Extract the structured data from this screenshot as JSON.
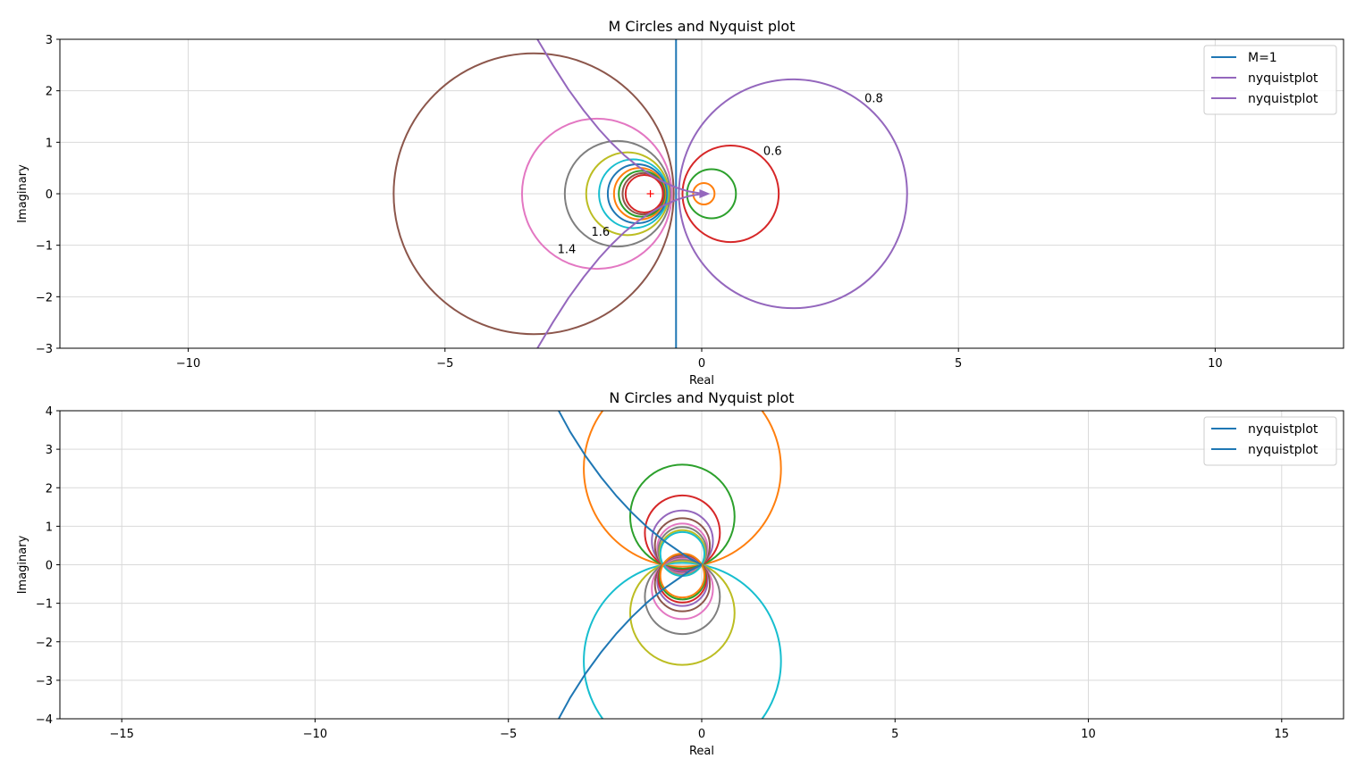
{
  "chart_data": [
    {
      "type": "line",
      "title": "M Circles and Nyquist plot",
      "xlabel": "Real",
      "ylabel": "Imaginary",
      "xlim": [
        -12.5,
        12.5
      ],
      "ylim": [
        -3,
        3
      ],
      "xticks": [
        -10,
        -5,
        0,
        5,
        10
      ],
      "xtick_labels": [
        "−10",
        "−5",
        "0",
        "5",
        "10"
      ],
      "yticks": [
        -3,
        -2,
        -1,
        0,
        1,
        2,
        3
      ],
      "ytick_labels": [
        "−3",
        "−2",
        "−1",
        "0",
        "1",
        "2",
        "3"
      ],
      "grid": true,
      "legend_position": "top-right",
      "legend": [
        {
          "label": "M=1",
          "color": "#1f77b4"
        },
        {
          "label": "nyquistplot",
          "color": "#9467bd"
        },
        {
          "label": "nyquistplot",
          "color": "#9467bd"
        }
      ],
      "m1_line": {
        "x": -0.5,
        "color": "#1f77b4"
      },
      "circles": [
        {
          "cx": 0.0417,
          "r": 0.2083,
          "color": "#ff7f0e"
        },
        {
          "cx": 0.1905,
          "r": 0.4762,
          "color": "#2ca02c"
        },
        {
          "cx": 0.5625,
          "r": 0.9375,
          "color": "#d62728"
        },
        {
          "cx": 1.7778,
          "r": 2.2222,
          "color": "#9467bd"
        },
        {
          "cx": -3.2727,
          "r": 2.7273,
          "color": "#8c564b"
        },
        {
          "cx": -2.0417,
          "r": 1.4583,
          "color": "#e377c2"
        },
        {
          "cx": -1.641,
          "r": 1.0256,
          "color": "#7f7f7f"
        },
        {
          "cx": -1.4464,
          "r": 0.8036,
          "color": "#bcbd22"
        },
        {
          "cx": -1.3333,
          "r": 0.6667,
          "color": "#17becf"
        },
        {
          "cx": -1.2581,
          "r": 0.5712,
          "color": "#1f77b4"
        },
        {
          "cx": -1.2083,
          "r": 0.5,
          "color": "#ff7f0e"
        },
        {
          "cx": -1.1704,
          "r": 0.4445,
          "color": "#2ca02c"
        },
        {
          "cx": -1.1414,
          "r": 0.4,
          "color": "#8c564b"
        },
        {
          "cx": -1.119,
          "r": 0.3637,
          "color": "#d62728"
        }
      ],
      "annotations": [
        {
          "x": 3.35,
          "y": 1.86,
          "text": "0.8"
        },
        {
          "x": 1.38,
          "y": 0.84,
          "text": "0.6"
        },
        {
          "x": -1.97,
          "y": -0.73,
          "text": "1.6"
        },
        {
          "x": -2.63,
          "y": -1.07,
          "text": "1.4"
        }
      ],
      "critical_point": {
        "x": -1,
        "y": 0,
        "color": "#ff0000"
      },
      "series": [
        {
          "name": "nyquistplot",
          "color": "#9467bd",
          "x": [
            -3.2,
            -2.9,
            -2.6,
            -2.3,
            -2.0,
            -1.75,
            -1.5,
            -1.25,
            -1.0,
            -0.75,
            -0.5,
            -0.25,
            0.0,
            0.06
          ],
          "y": [
            3.0,
            2.5,
            2.03,
            1.62,
            1.25,
            0.98,
            0.74,
            0.54,
            0.37,
            0.23,
            0.12,
            0.045,
            0.004,
            0.0
          ]
        },
        {
          "name": "nyquistplot",
          "color": "#9467bd",
          "x": [
            -3.2,
            -2.9,
            -2.6,
            -2.3,
            -2.0,
            -1.75,
            -1.5,
            -1.25,
            -1.0,
            -0.75,
            -0.5,
            -0.25,
            0.0,
            0.06
          ],
          "y": [
            -3.0,
            -2.5,
            -2.03,
            -1.62,
            -1.25,
            -0.98,
            -0.74,
            -0.54,
            -0.37,
            -0.23,
            -0.12,
            -0.045,
            -0.004,
            0.0
          ]
        }
      ]
    },
    {
      "type": "line",
      "title": "N Circles and Nyquist plot",
      "xlabel": "Real",
      "ylabel": "Imaginary",
      "xlim": [
        -16.6,
        16.6
      ],
      "ylim": [
        -4,
        4
      ],
      "xticks": [
        -15,
        -10,
        -5,
        0,
        5,
        10,
        15
      ],
      "xtick_labels": [
        "−15",
        "−10",
        "−5",
        "0",
        "5",
        "10",
        "15"
      ],
      "yticks": [
        -4,
        -3,
        -2,
        -1,
        0,
        1,
        2,
        3,
        4
      ],
      "ytick_labels": [
        "−4",
        "−3",
        "−2",
        "−1",
        "0",
        "1",
        "2",
        "3",
        "4"
      ],
      "grid": true,
      "legend_position": "top-right",
      "legend": [
        {
          "label": "nyquistplot",
          "color": "#1f77b4"
        },
        {
          "label": "nyquistplot",
          "color": "#1f77b4"
        }
      ],
      "circles": [
        {
          "cx": -0.5,
          "cy": 2.5,
          "r": 2.55,
          "color": "#ff7f0e"
        },
        {
          "cx": -0.5,
          "cy": 1.25,
          "r": 1.35,
          "color": "#2ca02c"
        },
        {
          "cx": -0.5,
          "cy": 0.83,
          "r": 0.97,
          "color": "#d62728"
        },
        {
          "cx": -0.5,
          "cy": 0.62,
          "r": 0.79,
          "color": "#9467bd"
        },
        {
          "cx": -0.5,
          "cy": 0.5,
          "r": 0.71,
          "color": "#8c564b"
        },
        {
          "cx": -0.5,
          "cy": 0.42,
          "r": 0.65,
          "color": "#e377c2"
        },
        {
          "cx": -0.5,
          "cy": 0.36,
          "r": 0.62,
          "color": "#7f7f7f"
        },
        {
          "cx": -0.5,
          "cy": 0.31,
          "r": 0.59,
          "color": "#bcbd22"
        },
        {
          "cx": -0.5,
          "cy": 0.28,
          "r": 0.57,
          "color": "#17becf"
        },
        {
          "cx": -0.5,
          "cy": -2.5,
          "r": 2.55,
          "color": "#17becf"
        },
        {
          "cx": -0.5,
          "cy": -1.25,
          "r": 1.35,
          "color": "#bcbd22"
        },
        {
          "cx": -0.5,
          "cy": -0.83,
          "r": 0.97,
          "color": "#7f7f7f"
        },
        {
          "cx": -0.5,
          "cy": -0.62,
          "r": 0.79,
          "color": "#e377c2"
        },
        {
          "cx": -0.5,
          "cy": -0.5,
          "r": 0.71,
          "color": "#8c564b"
        },
        {
          "cx": -0.5,
          "cy": -0.42,
          "r": 0.65,
          "color": "#9467bd"
        },
        {
          "cx": -0.5,
          "cy": -0.36,
          "r": 0.62,
          "color": "#d62728"
        },
        {
          "cx": -0.5,
          "cy": -0.31,
          "r": 0.59,
          "color": "#2ca02c"
        },
        {
          "cx": -0.5,
          "cy": -0.28,
          "r": 0.57,
          "color": "#ff7f0e"
        }
      ],
      "series": [
        {
          "name": "nyquistplot",
          "color": "#1f77b4",
          "x": [
            -3.7,
            -3.4,
            -3.0,
            -2.6,
            -2.2,
            -1.8,
            -1.4,
            -1.0,
            -0.6,
            -0.3,
            0.0
          ],
          "y": [
            4.0,
            3.45,
            2.82,
            2.27,
            1.78,
            1.35,
            0.97,
            0.64,
            0.36,
            0.15,
            0.0
          ]
        },
        {
          "name": "nyquistplot",
          "color": "#1f77b4",
          "x": [
            -3.7,
            -3.4,
            -3.0,
            -2.6,
            -2.2,
            -1.8,
            -1.4,
            -1.0,
            -0.6,
            -0.3,
            0.0
          ],
          "y": [
            -4.0,
            -3.45,
            -2.82,
            -2.27,
            -1.78,
            -1.35,
            -0.97,
            -0.64,
            -0.36,
            -0.15,
            0.0
          ]
        }
      ]
    }
  ]
}
